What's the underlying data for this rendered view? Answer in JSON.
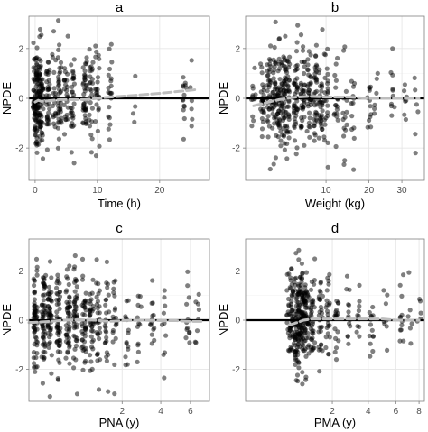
{
  "chart_data": [
    {
      "type": "scatter",
      "panel": "a",
      "title": "a",
      "xlabel": "Time (h)",
      "ylabel": "NPDE",
      "xscale": "linear",
      "xlim": [
        -1,
        28
      ],
      "ylim": [
        -3.3,
        3.3
      ],
      "xticks": [
        0,
        10,
        20
      ],
      "yticks": [
        -2,
        0,
        2
      ],
      "grid": true,
      "reference_line_y": 0,
      "clusters": [
        {
          "x": 0.0,
          "n": 70,
          "spread": 1.1
        },
        {
          "x": 0.5,
          "n": 60,
          "spread": 1.05
        },
        {
          "x": 1.0,
          "n": 50,
          "spread": 1.0
        },
        {
          "x": 2.0,
          "n": 35,
          "spread": 0.95
        },
        {
          "x": 3.0,
          "n": 20,
          "spread": 0.9
        },
        {
          "x": 4.0,
          "n": 40,
          "spread": 0.95
        },
        {
          "x": 5.0,
          "n": 25,
          "spread": 0.9
        },
        {
          "x": 6.0,
          "n": 30,
          "spread": 0.9
        },
        {
          "x": 8.0,
          "n": 40,
          "spread": 0.95
        },
        {
          "x": 9.0,
          "n": 25,
          "spread": 0.9
        },
        {
          "x": 10.0,
          "n": 25,
          "spread": 0.9
        },
        {
          "x": 12.0,
          "n": 20,
          "spread": 0.9
        },
        {
          "x": 16.0,
          "n": 4,
          "spread": 0.8
        },
        {
          "x": 24.0,
          "n": 14,
          "spread": 0.9
        },
        {
          "x": 25.0,
          "n": 6,
          "spread": 0.8
        }
      ],
      "smooth": {
        "x": [
          0,
          0.5,
          1,
          2,
          4,
          6,
          8,
          10,
          12,
          16,
          20,
          24,
          26
        ],
        "y": [
          -0.15,
          -0.08,
          -0.12,
          -0.1,
          -0.05,
          -0.05,
          -0.05,
          0.0,
          0.05,
          0.12,
          0.2,
          0.3,
          0.35
        ]
      }
    },
    {
      "type": "scatter",
      "panel": "b",
      "title": "b",
      "xlabel": "Weight (kg)",
      "ylabel": "NPDE",
      "xscale": "sqrt",
      "xlim": [
        0.5,
        38
      ],
      "ylim": [
        -3.3,
        3.3
      ],
      "xticks": [
        10,
        20,
        30
      ],
      "yticks": [
        -2,
        0,
        2
      ],
      "grid": true,
      "reference_line_y": 0,
      "clusters": [
        {
          "x": 0.9,
          "n": 12,
          "spread": 1.0
        },
        {
          "x": 1.5,
          "n": 25,
          "spread": 1.0
        },
        {
          "x": 2.0,
          "n": 35,
          "spread": 1.0
        },
        {
          "x": 2.5,
          "n": 40,
          "spread": 1.0
        },
        {
          "x": 3.0,
          "n": 45,
          "spread": 1.0
        },
        {
          "x": 3.5,
          "n": 45,
          "spread": 1.0
        },
        {
          "x": 4.0,
          "n": 40,
          "spread": 1.0
        },
        {
          "x": 5.0,
          "n": 45,
          "spread": 1.0
        },
        {
          "x": 6.0,
          "n": 40,
          "spread": 1.0
        },
        {
          "x": 7.0,
          "n": 35,
          "spread": 1.0
        },
        {
          "x": 8.0,
          "n": 35,
          "spread": 1.0
        },
        {
          "x": 9.0,
          "n": 30,
          "spread": 1.0
        },
        {
          "x": 10.0,
          "n": 25,
          "spread": 0.95
        },
        {
          "x": 12.0,
          "n": 18,
          "spread": 0.9
        },
        {
          "x": 14.0,
          "n": 15,
          "spread": 0.9
        },
        {
          "x": 16.0,
          "n": 12,
          "spread": 0.85
        },
        {
          "x": 20.0,
          "n": 12,
          "spread": 0.85
        },
        {
          "x": 22.0,
          "n": 6,
          "spread": 0.8
        },
        {
          "x": 27.0,
          "n": 10,
          "spread": 0.85
        },
        {
          "x": 31.0,
          "n": 8,
          "spread": 0.8
        },
        {
          "x": 35.0,
          "n": 6,
          "spread": 0.8
        }
      ],
      "smooth": {
        "x": [
          0.9,
          2,
          3,
          5,
          7,
          10,
          15,
          20,
          30,
          36
        ],
        "y": [
          -0.3,
          -0.15,
          -0.05,
          0.05,
          0.08,
          0.05,
          0.05,
          0.0,
          0.0,
          0.0
        ]
      }
    },
    {
      "type": "scatter",
      "panel": "c",
      "title": "c",
      "xlabel": "PNA (y)",
      "ylabel": "NPDE",
      "xscale": "sqrt",
      "xlim": [
        0.0,
        7.5
      ],
      "ylim": [
        -3.3,
        3.3
      ],
      "xticks": [
        2,
        4,
        6
      ],
      "yticks": [
        -2,
        0,
        2
      ],
      "grid": true,
      "reference_line_y": 0,
      "clusters": [
        {
          "x": 0.01,
          "n": 60,
          "spread": 1.05
        },
        {
          "x": 0.05,
          "n": 55,
          "spread": 1.05
        },
        {
          "x": 0.1,
          "n": 50,
          "spread": 1.0
        },
        {
          "x": 0.2,
          "n": 50,
          "spread": 1.0
        },
        {
          "x": 0.35,
          "n": 45,
          "spread": 1.0
        },
        {
          "x": 0.5,
          "n": 45,
          "spread": 1.0
        },
        {
          "x": 0.7,
          "n": 40,
          "spread": 1.0
        },
        {
          "x": 0.9,
          "n": 35,
          "spread": 1.0
        },
        {
          "x": 1.1,
          "n": 30,
          "spread": 1.0
        },
        {
          "x": 1.4,
          "n": 25,
          "spread": 0.95
        },
        {
          "x": 1.7,
          "n": 20,
          "spread": 0.9
        },
        {
          "x": 2.2,
          "n": 14,
          "spread": 0.85
        },
        {
          "x": 2.8,
          "n": 12,
          "spread": 0.85
        },
        {
          "x": 3.5,
          "n": 14,
          "spread": 0.85
        },
        {
          "x": 4.2,
          "n": 10,
          "spread": 0.8
        },
        {
          "x": 5.8,
          "n": 12,
          "spread": 0.85
        },
        {
          "x": 6.5,
          "n": 8,
          "spread": 0.8
        }
      ],
      "smooth": {
        "x": [
          0.0,
          0.1,
          0.3,
          0.6,
          1.0,
          1.5,
          2,
          3,
          4,
          5,
          6,
          7
        ],
        "y": [
          -0.1,
          -0.05,
          0.0,
          0.02,
          0.0,
          -0.05,
          -0.02,
          0.0,
          -0.02,
          -0.02,
          -0.05,
          -0.05
        ]
      }
    },
    {
      "type": "scatter",
      "panel": "d",
      "title": "d",
      "xlabel": "PMA (y)",
      "ylabel": "NPDE",
      "xscale": "sqrt",
      "xlim": [
        0.0,
        8.5
      ],
      "ylim": [
        -3.3,
        3.3
      ],
      "xticks": [
        2,
        4,
        6,
        8
      ],
      "yticks": [
        -2,
        0,
        2
      ],
      "grid": true,
      "reference_line_y": 0,
      "clusters": [
        {
          "x": 0.5,
          "n": 30,
          "spread": 1.0
        },
        {
          "x": 0.6,
          "n": 40,
          "spread": 1.05
        },
        {
          "x": 0.7,
          "n": 60,
          "spread": 1.05
        },
        {
          "x": 0.8,
          "n": 60,
          "spread": 1.05
        },
        {
          "x": 0.9,
          "n": 50,
          "spread": 1.05
        },
        {
          "x": 1.0,
          "n": 40,
          "spread": 1.0
        },
        {
          "x": 1.2,
          "n": 35,
          "spread": 1.0
        },
        {
          "x": 1.5,
          "n": 30,
          "spread": 1.0
        },
        {
          "x": 1.8,
          "n": 25,
          "spread": 0.95
        },
        {
          "x": 2.2,
          "n": 18,
          "spread": 0.9
        },
        {
          "x": 2.8,
          "n": 14,
          "spread": 0.85
        },
        {
          "x": 3.4,
          "n": 12,
          "spread": 0.85
        },
        {
          "x": 4.2,
          "n": 14,
          "spread": 0.85
        },
        {
          "x": 5.2,
          "n": 8,
          "spread": 0.8
        },
        {
          "x": 6.5,
          "n": 12,
          "spread": 0.85
        },
        {
          "x": 7.2,
          "n": 6,
          "spread": 0.8
        },
        {
          "x": 8.0,
          "n": 5,
          "spread": 0.8
        }
      ],
      "smooth": {
        "x": [
          0.5,
          0.7,
          0.9,
          1.2,
          1.6,
          2,
          3,
          4,
          5,
          6,
          7,
          8
        ],
        "y": [
          -0.2,
          -0.1,
          0.0,
          0.05,
          0.05,
          0.05,
          0.05,
          0.05,
          0.05,
          0.0,
          0.0,
          0.0
        ]
      }
    }
  ]
}
